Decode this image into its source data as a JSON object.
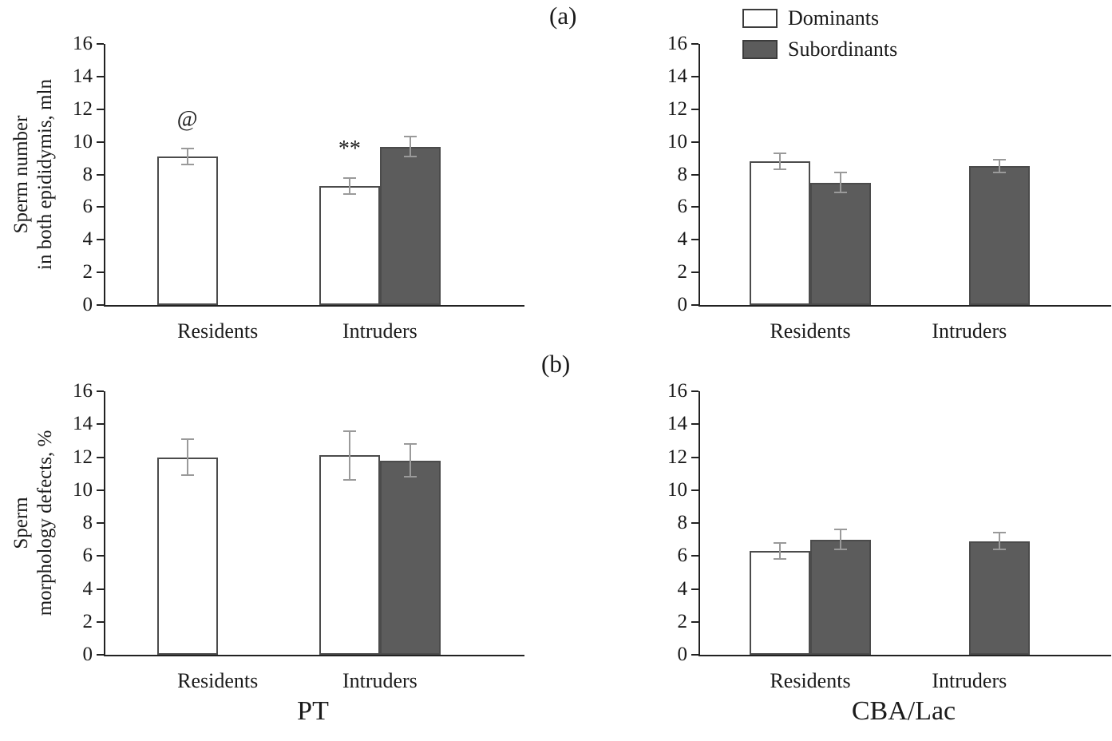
{
  "figure": {
    "panel_labels": {
      "a": "(a)",
      "b": "(b)"
    },
    "column_labels": [
      "PT",
      "CBA/Lac"
    ],
    "colors": {
      "dominants_fill": "#ffffff",
      "subordinants_fill": "#5c5c5c",
      "bar_border": "#4b4b4b",
      "error_bar": "#9a9a9a",
      "axis": "#222222"
    },
    "legend": {
      "items": [
        {
          "label": "Dominants",
          "series": "Dominants"
        },
        {
          "label": "Subordinants",
          "series": "Subordinants"
        }
      ],
      "position": "top-right-panel"
    }
  },
  "chart_data": [
    {
      "id": "sperm-number-pt",
      "type": "bar",
      "panel": "a",
      "column": "PT",
      "ylabel": "Sperm number\nin both epididymis, mln",
      "ylim": [
        0,
        16
      ],
      "ytick_step": 2,
      "grid": false,
      "categories": [
        "Residents",
        "Intruders"
      ],
      "series": [
        {
          "name": "Dominants",
          "values": [
            9.1,
            7.3
          ],
          "errors": [
            0.5,
            0.5
          ]
        },
        {
          "name": "Subordinants",
          "values": [
            null,
            9.7
          ],
          "errors": [
            null,
            0.6
          ]
        }
      ],
      "annotations": [
        {
          "category": "Residents",
          "series": "Dominants",
          "text": "@"
        },
        {
          "category": "Intruders",
          "series": "Dominants",
          "text": "**"
        }
      ]
    },
    {
      "id": "sperm-number-cba",
      "type": "bar",
      "panel": "a",
      "column": "CBA/Lac",
      "ylabel": "",
      "ylim": [
        0,
        16
      ],
      "ytick_step": 2,
      "grid": false,
      "categories": [
        "Residents",
        "Intruders"
      ],
      "series": [
        {
          "name": "Dominants",
          "values": [
            8.8,
            null
          ],
          "errors": [
            0.5,
            null
          ]
        },
        {
          "name": "Subordinants",
          "values": [
            7.5,
            8.5
          ],
          "errors": [
            0.6,
            0.4
          ]
        }
      ],
      "annotations": []
    },
    {
      "id": "sperm-morphology-pt",
      "type": "bar",
      "panel": "b",
      "column": "PT",
      "ylabel": "Sperm\nmorphology defects, %",
      "ylim": [
        0,
        16
      ],
      "ytick_step": 2,
      "grid": false,
      "categories": [
        "Residents",
        "Intruders"
      ],
      "series": [
        {
          "name": "Dominants",
          "values": [
            12.0,
            12.1
          ],
          "errors": [
            1.1,
            1.5
          ]
        },
        {
          "name": "Subordinants",
          "values": [
            null,
            11.8
          ],
          "errors": [
            null,
            1.0
          ]
        }
      ],
      "annotations": []
    },
    {
      "id": "sperm-morphology-cba",
      "type": "bar",
      "panel": "b",
      "column": "CBA/Lac",
      "ylabel": "",
      "ylim": [
        0,
        16
      ],
      "ytick_step": 2,
      "grid": false,
      "categories": [
        "Residents",
        "Intruders"
      ],
      "series": [
        {
          "name": "Dominants",
          "values": [
            6.3,
            null
          ],
          "errors": [
            0.5,
            null
          ]
        },
        {
          "name": "Subordinants",
          "values": [
            7.0,
            6.9
          ],
          "errors": [
            0.6,
            0.5
          ]
        }
      ],
      "annotations": []
    }
  ]
}
